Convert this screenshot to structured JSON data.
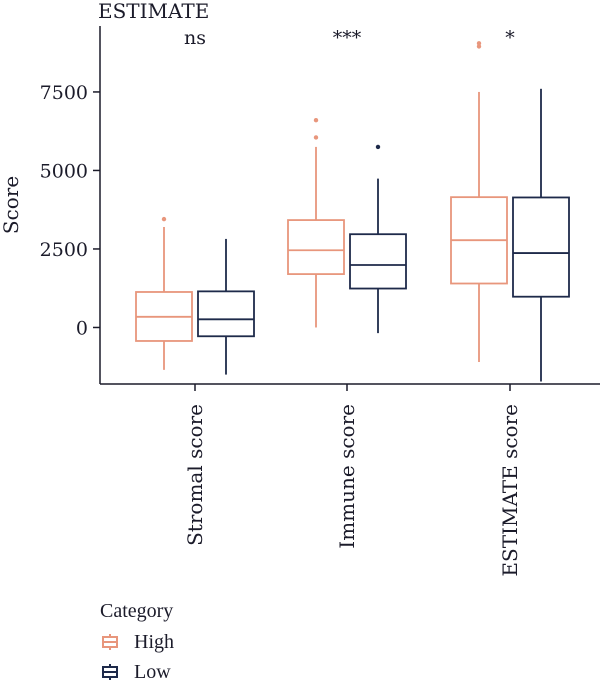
{
  "chart_data": {
    "type": "box",
    "title": "ESTIMATE",
    "ylabel": "Score",
    "xlabel": "",
    "ylim": [
      -1800,
      9600
    ],
    "yticks": [
      0,
      2500,
      5000,
      7500
    ],
    "categories": [
      "Stromal score",
      "Immune score",
      "ESTIMATE score"
    ],
    "significance": [
      "ns",
      "***",
      "*"
    ],
    "legend": {
      "title": "Category",
      "position": "bottom-left"
    },
    "series": [
      {
        "name": "High",
        "color": "#e8967c",
        "boxes": [
          {
            "whisker_low": -1350,
            "q1": -430,
            "median": 340,
            "q3": 1130,
            "whisker_high": 3200,
            "outliers": [
              3450
            ]
          },
          {
            "whisker_low": 0,
            "q1": 1700,
            "median": 2460,
            "q3": 3420,
            "whisker_high": 5750,
            "outliers": [
              6050,
              6600
            ]
          },
          {
            "whisker_low": -1100,
            "q1": 1400,
            "median": 2780,
            "q3": 4150,
            "whisker_high": 7500,
            "outliers": [
              8950,
              9050
            ]
          }
        ]
      },
      {
        "name": "Low",
        "color": "#1e2a4a",
        "boxes": [
          {
            "whisker_low": -1500,
            "q1": -280,
            "median": 260,
            "q3": 1150,
            "whisker_high": 2820,
            "outliers": []
          },
          {
            "whisker_low": -180,
            "q1": 1240,
            "median": 1990,
            "q3": 2970,
            "whisker_high": 4740,
            "outliers": [
              5750
            ]
          },
          {
            "whisker_low": -1720,
            "q1": 980,
            "median": 2370,
            "q3": 4140,
            "whisker_high": 7600,
            "outliers": []
          }
        ]
      }
    ]
  }
}
